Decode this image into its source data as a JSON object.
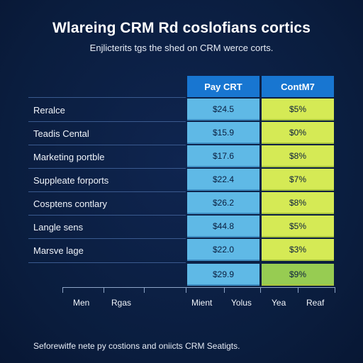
{
  "title": "Wlareing CRM Rd coslofians cortics",
  "subtitle": "Enjlicterits tgs the shed on CRM werce corts.",
  "table": {
    "columns": [
      {
        "label": "Pay CRT"
      },
      {
        "label": "ContM7"
      }
    ],
    "rows": [
      {
        "label": "Reralce",
        "pay": "$24.5",
        "cont": "$5%"
      },
      {
        "label": "Teadis Cental",
        "pay": "$15.9",
        "cont": "$0%"
      },
      {
        "label": "Marketing portble",
        "pay": "$17.6",
        "cont": "$8%"
      },
      {
        "label": "Suppleate forports",
        "pay": "$22.4",
        "cont": "$7%"
      },
      {
        "label": "Cosptens contlary",
        "pay": "$26.2",
        "cont": "$8%"
      },
      {
        "label": "Langle sens",
        "pay": "$44.8",
        "cont": "$5%"
      },
      {
        "label": "Marsve lage",
        "pay": "$22.0",
        "cont": "$3%"
      },
      {
        "label": "",
        "pay": "$29.9",
        "cont": "$9%"
      }
    ]
  },
  "axis": {
    "labels": [
      "Men",
      "Rgas",
      "Mient",
      "Yolus",
      "Yea",
      "Reaf"
    ]
  },
  "footer": "Seforewitfe nete py costions and oniicts CRM Seatigts.",
  "colors": {
    "background": "#0a1d3e",
    "header": "#1876d1",
    "pay_cells": "#5fb9e6",
    "cont_cells": "#d5ea55",
    "cont_last_cell": "#97cc52"
  }
}
